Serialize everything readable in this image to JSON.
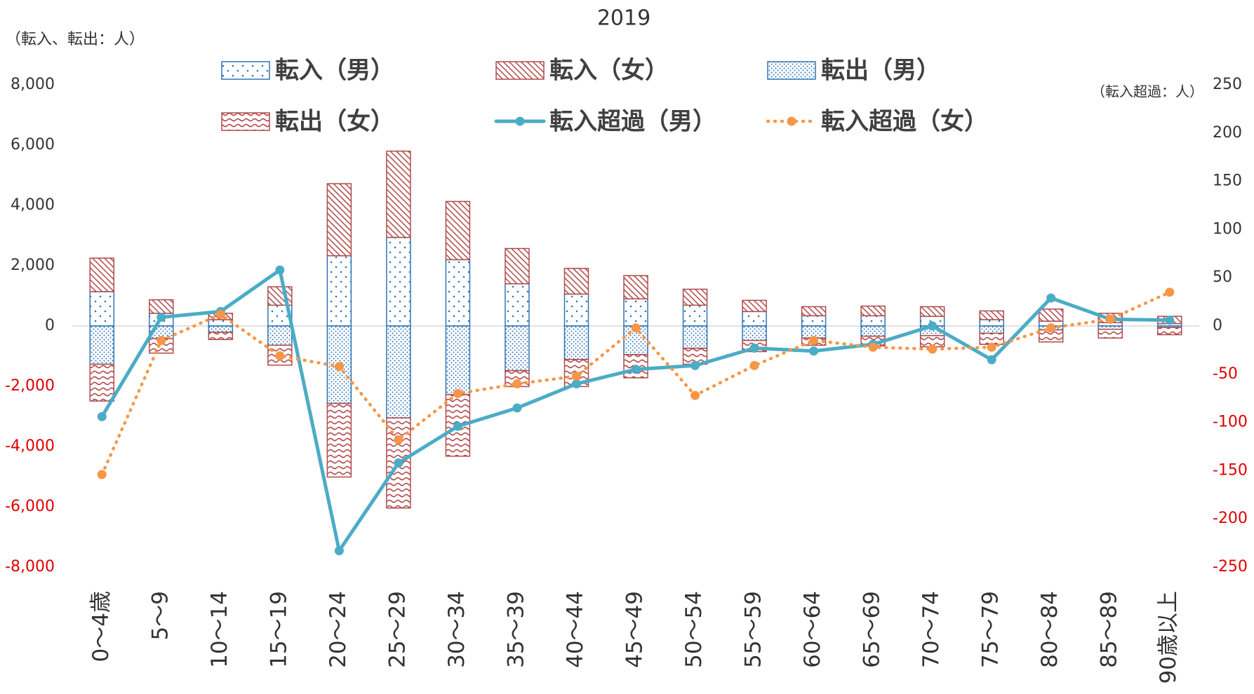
{
  "chart_data": {
    "type": "bar",
    "title": "2019",
    "y_label": "（転入、転出：人）",
    "y2_label": "（転入超過：人）",
    "categories": [
      "0〜4歳",
      "5〜9",
      "10〜14",
      "15〜19",
      "20〜24",
      "25〜29",
      "30〜34",
      "35〜39",
      "40〜44",
      "45〜49",
      "50〜54",
      "55〜59",
      "60〜64",
      "65〜69",
      "70〜74",
      "75〜79",
      "80〜84",
      "85〜89",
      "90歳以上"
    ],
    "series": [
      {
        "name": "転入（男）",
        "type": "bar",
        "color": "#2e75b6",
        "pattern": "dots-sparse",
        "values": [
          1140,
          420,
          210,
          690,
          2330,
          2940,
          2200,
          1400,
          1060,
          900,
          690,
          480,
          340,
          340,
          320,
          210,
          160,
          110,
          80
        ]
      },
      {
        "name": "転入（女）",
        "type": "bar",
        "color": "#b04a4a",
        "pattern": "hatch",
        "values": [
          1110,
          450,
          210,
          610,
          2390,
          2860,
          1930,
          1170,
          850,
          770,
          530,
          370,
          300,
          320,
          320,
          290,
          400,
          310,
          240
        ]
      },
      {
        "name": "転出（男）",
        "type": "bar",
        "color": "#2e75b6",
        "pattern": "dots-dense",
        "values": [
          -1270,
          -420,
          -210,
          -640,
          -2570,
          -3050,
          -2280,
          -1480,
          -1110,
          -950,
          -740,
          -480,
          -400,
          -340,
          -320,
          -240,
          -130,
          -110,
          -50
        ]
      },
      {
        "name": "転出（女）",
        "type": "bar",
        "color": "#b04a4a",
        "pattern": "wave",
        "values": [
          -1220,
          -480,
          -240,
          -660,
          -2440,
          -2990,
          -2040,
          -530,
          -900,
          -770,
          -530,
          -370,
          -240,
          -320,
          -370,
          -370,
          -400,
          -290,
          -240
        ]
      },
      {
        "name": "転入超過（男）",
        "type": "line",
        "axis": "y2",
        "color": "#4bacc6",
        "dash": "solid",
        "values": [
          -94,
          9,
          15,
          58,
          -233,
          -142,
          -104,
          -85,
          -60,
          -45,
          -41,
          -23,
          -26,
          -19,
          0,
          -35,
          29,
          7,
          6
        ]
      },
      {
        "name": "転入超過（女）",
        "type": "line",
        "axis": "y2",
        "color": "#f79646",
        "dash": "dotted",
        "values": [
          -154,
          -15,
          12,
          -31,
          -42,
          -118,
          -70,
          -60,
          -52,
          -2,
          -72,
          -41,
          -15,
          -22,
          -24,
          -22,
          -2,
          7,
          35
        ]
      }
    ],
    "ylim": [
      -8000,
      8000
    ],
    "yticks": [
      {
        "value": -8000,
        "label": "-8,000"
      },
      {
        "value": -6000,
        "label": "-6,000"
      },
      {
        "value": -4000,
        "label": "-4,000"
      },
      {
        "value": -2000,
        "label": "-2,000"
      },
      0,
      {
        "value": 2000,
        "label": "2,000"
      },
      {
        "value": 4000,
        "label": "4,000"
      },
      {
        "value": 6000,
        "label": "6,000"
      },
      {
        "value": 8000,
        "label": "8,000"
      }
    ],
    "y2lim": [
      -250,
      250
    ],
    "y2ticks": [
      -250,
      -200,
      -150,
      -100,
      -50,
      0,
      50,
      100,
      150,
      200,
      250
    ]
  }
}
